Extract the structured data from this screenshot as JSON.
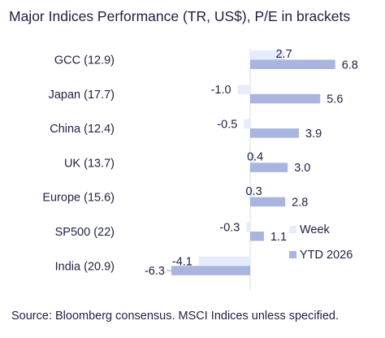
{
  "title": "Major Indices Performance (TR, US$), P/E in brackets",
  "source": "Source: Bloomberg consensus. MSCI Indices unless specified.",
  "chart_data": {
    "type": "bar",
    "orientation": "horizontal",
    "categories": [
      "GCC (12.9)",
      "Japan (17.7)",
      "China (12.4)",
      "UK (13.7)",
      "Europe (15.6)",
      "SP500 (22)",
      "India (20.9)"
    ],
    "series": [
      {
        "name": "Week",
        "values": [
          2.7,
          -1.0,
          -0.5,
          0.4,
          0.3,
          -0.3,
          -4.1
        ],
        "labels": [
          "2.7",
          "-1.0",
          "-0.5",
          "0.4",
          "0.3",
          "-0.3",
          "-4.1"
        ],
        "color": "#e6ecfb"
      },
      {
        "name": "YTD 2026",
        "values": [
          6.8,
          5.6,
          3.9,
          3.0,
          2.8,
          1.1,
          -6.3
        ],
        "labels": [
          "6.8",
          "5.6",
          "3.9",
          "3.0",
          "2.8",
          "1.1",
          "-6.3"
        ],
        "color": "#a9b5de"
      }
    ],
    "legend": "bottom-right",
    "grid": false
  }
}
